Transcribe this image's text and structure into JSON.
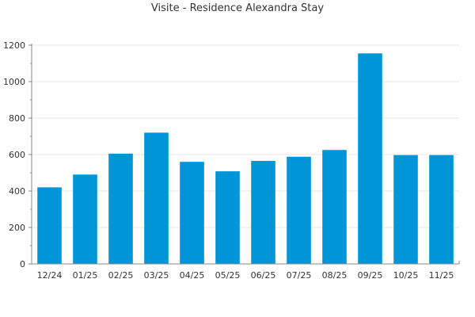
{
  "chart_data": {
    "type": "bar",
    "title": "Visite - Residence Alexandra Stay",
    "xlabel": "",
    "ylabel": "",
    "categories": [
      "12/24",
      "01/25",
      "02/25",
      "03/25",
      "04/25",
      "05/25",
      "06/25",
      "07/25",
      "08/25",
      "09/25",
      "10/25",
      "11/25"
    ],
    "series": [
      {
        "values": [
          420,
          490,
          605,
          720,
          560,
          508,
          565,
          588,
          625,
          1155,
          597,
          597
        ]
      }
    ],
    "ylim": [
      0,
      1200
    ],
    "yticks": [
      0,
      200,
      400,
      600,
      800,
      1000,
      1200
    ],
    "grid": true,
    "bar_color": "#0095d6",
    "axis_color": "#888888",
    "grid_color": "#e6e6e6"
  }
}
